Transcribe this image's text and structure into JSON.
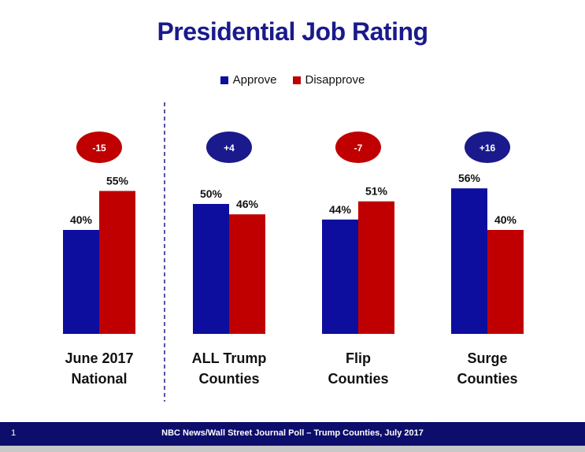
{
  "title": "Presidential Job Rating",
  "footer": {
    "page_number": "1",
    "text": "NBC News/Wall Street Journal Poll – Trump Counties, July 2017"
  },
  "colors": {
    "approve": "#0d0d9e",
    "disapprove": "#c00000",
    "title": "#1a1a8c",
    "positive_badge": "#1a1a8c",
    "negative_badge": "#c00000"
  },
  "chart_data": {
    "type": "bar",
    "title": "Presidential Job Rating",
    "categories": [
      [
        "June 2017",
        "National"
      ],
      [
        "ALL Trump",
        "Counties"
      ],
      [
        "Flip",
        "Counties"
      ],
      [
        "Surge",
        "Counties"
      ]
    ],
    "series": [
      {
        "name": "Approve",
        "values": [
          40,
          50,
          44,
          56
        ],
        "labels": [
          "40%",
          "50%",
          "44%",
          "56%"
        ]
      },
      {
        "name": "Disapprove",
        "values": [
          55,
          46,
          51,
          40
        ],
        "labels": [
          "55%",
          "46%",
          "51%",
          "40%"
        ]
      }
    ],
    "net": [
      "-15",
      "+4",
      "-7",
      "+16"
    ],
    "legend_position": "top-center",
    "ylim": [
      0,
      100
    ],
    "grid": false,
    "xlabel": "",
    "ylabel": ""
  }
}
